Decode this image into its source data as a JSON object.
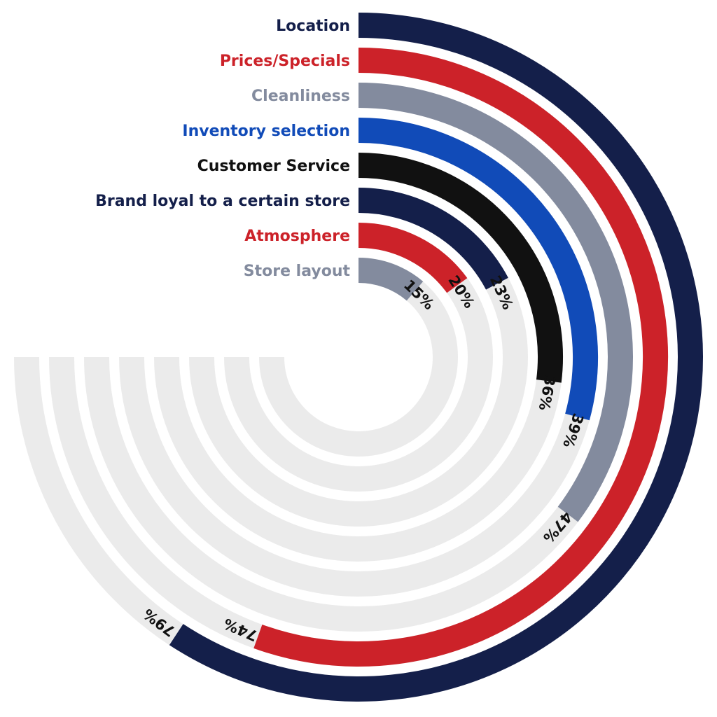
{
  "chart_data": {
    "type": "radial-bar",
    "title": "",
    "max_value": 100,
    "value_suffix": "%",
    "track_color": "#ebebeb",
    "series": [
      {
        "name": "Location",
        "value": 79,
        "color": "#141f4a"
      },
      {
        "name": "Prices/Specials",
        "value": 74,
        "color": "#cc2229"
      },
      {
        "name": "Cleanliness",
        "value": 47,
        "color": "#838b9e"
      },
      {
        "name": "Inventory selection",
        "value": 39,
        "color": "#114bb8"
      },
      {
        "name": "Customer Service",
        "value": 36,
        "color": "#111111"
      },
      {
        "name": "Brand loyal to a certain store",
        "value": 23,
        "color": "#141f4a"
      },
      {
        "name": "Atmosphere",
        "value": 20,
        "color": "#cc2229"
      },
      {
        "name": "Store layout",
        "value": 15,
        "color": "#838b9e"
      }
    ]
  }
}
